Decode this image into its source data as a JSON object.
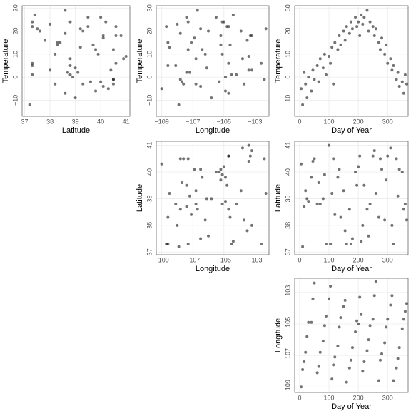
{
  "chart_data": {
    "type": "scatter_matrix",
    "color": "#000000",
    "alpha": 0.55,
    "grid": true,
    "variables": [
      {
        "name": "Temperature",
        "lim": [
          -17,
          31
        ],
        "ticks": [
          {
            "value": -10,
            "label": "−10"
          },
          0,
          10,
          20,
          30
        ],
        "values": [
          -5,
          -12,
          2,
          -3,
          -9,
          0,
          -6,
          3,
          -1,
          5,
          -2,
          8,
          4,
          10,
          1,
          9,
          6,
          13,
          -3,
          15,
          12,
          18,
          14,
          20,
          16,
          22,
          19,
          24,
          21,
          26,
          22,
          24,
          18,
          27,
          23,
          26,
          29,
          20,
          24,
          22,
          18,
          21,
          15,
          12,
          17,
          10,
          14,
          6,
          8,
          3,
          5,
          -1,
          2,
          -4,
          -2,
          -7,
          1,
          -3
        ]
      },
      {
        "name": "Latitude",
        "lim": [
          36.9,
          41.15
        ],
        "ticks": [
          37,
          38,
          39,
          40,
          41
        ],
        "values": [
          40.3,
          37.2,
          38.7,
          39.3,
          39.0,
          38.9,
          39.8,
          40.4,
          40.5,
          38.8,
          39.6,
          38.8,
          39.0,
          39.9,
          37.3,
          41.0,
          37.3,
          39.2,
          40.5,
          38.4,
          39.8,
          40.1,
          38.3,
          39.3,
          37.8,
          37.3,
          38.6,
          37.3,
          37.5,
          40.0,
          39.5,
          40.2,
          40.6,
          37.4,
          38.0,
          39.5,
          38.6,
          37.6,
          38.8,
          40.6,
          40.8,
          39.2,
          38.3,
          40.5,
          40.1,
          38.2,
          39.7,
          40.6,
          40.9,
          38.0,
          37.3,
          40.5,
          39.1,
          40.1,
          40.0,
          38.6,
          38.8,
          38.2
        ]
      },
      {
        "name": "Longitude",
        "lim": [
          -109.35,
          -102.1
        ],
        "ticks": [
          {
            "value": -109,
            "label": "−109"
          },
          {
            "value": -107,
            "label": "−107"
          },
          {
            "value": -105,
            "label": "−105"
          },
          {
            "value": -103,
            "label": "−103"
          }
        ],
        "values": [
          -109.0,
          -107.9,
          -107.4,
          -106.8,
          -105.8,
          -104.9,
          -104.9,
          -103.4,
          -102.4,
          -108.1,
          -107.7,
          -106.8,
          -106.1,
          -105.1,
          -104.5,
          -103.4,
          -102.6,
          -108.5,
          -107.6,
          -107.1,
          -106.4,
          -105.2,
          -104.6,
          -103.9,
          -103.5,
          -108.7,
          -107.8,
          -107.3,
          -106.5,
          -105.5,
          -104.8,
          -105.0,
          -103.3,
          -104.4,
          -108.0,
          -107.4,
          -106.7,
          -106.0,
          -105.1,
          -104.7,
          -103.2,
          -102.3,
          -108.6,
          -107.3,
          -106.9,
          -106.2,
          -105.2,
          -104.7,
          -103.8,
          -103.2,
          -108.6,
          -107.8,
          -107.2,
          -106.5,
          -105.3,
          -104.7,
          -104.2,
          -103.7
        ]
      },
      {
        "name": "Day of Year",
        "lim": [
          -17,
          370
        ],
        "ticks": [
          0,
          100,
          200,
          300
        ],
        "values": [
          5,
          10,
          15,
          20,
          25,
          30,
          40,
          45,
          50,
          60,
          65,
          70,
          80,
          85,
          90,
          100,
          105,
          110,
          115,
          120,
          130,
          135,
          140,
          150,
          155,
          160,
          170,
          175,
          180,
          190,
          195,
          200,
          205,
          210,
          215,
          220,
          230,
          235,
          240,
          250,
          255,
          260,
          270,
          275,
          280,
          290,
          295,
          300,
          310,
          315,
          320,
          330,
          335,
          340,
          350,
          355,
          360,
          365
        ]
      }
    ]
  }
}
